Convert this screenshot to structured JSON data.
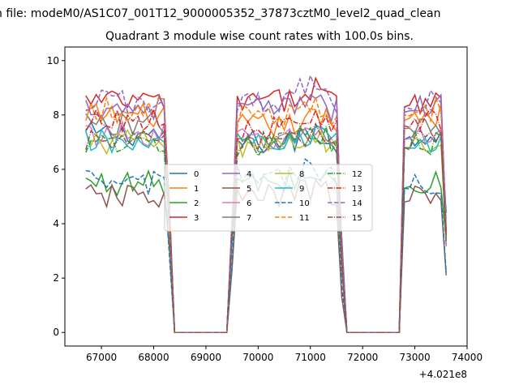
{
  "figure": {
    "suptitle": "n file: modeM0/AS1C07_001T12_9000005352_37873cztM0_level2_quad_clean",
    "title": "Quadrant 3 module wise count rates with 100.0s bins."
  },
  "chart_data": {
    "type": "line",
    "title": "Quadrant 3 module wise count rates with 100.0s bins.",
    "xlabel": "",
    "ylabel": "",
    "x_offset_text": "+4.021e8",
    "xlim": [
      66300,
      74000
    ],
    "ylim": [
      -0.5,
      10.5
    ],
    "xticks": [
      67000,
      68000,
      69000,
      70000,
      71000,
      72000,
      73000,
      74000
    ],
    "yticks": [
      0,
      2,
      4,
      6,
      8,
      10
    ],
    "legend_loc": "center",
    "legend_ncol": 4,
    "segments": [
      {
        "start": 66700,
        "n": 17
      },
      {
        "start": 68400,
        "n": 11,
        "gap": true
      },
      {
        "start": 69500,
        "n": 22
      },
      {
        "start": 71700,
        "n": 11,
        "gap": true
      },
      {
        "start": 72800,
        "n": 9
      }
    ],
    "series": [
      {
        "name": "0",
        "color": "#1f77b4",
        "dash": "solid",
        "level": 7.3,
        "seg3": 7.0,
        "edge": 4.8
      },
      {
        "name": "1",
        "color": "#ff7f0e",
        "dash": "solid",
        "level": 8.0,
        "seg3": 7.6,
        "edge": 4.0
      },
      {
        "name": "2",
        "color": "#2ca02c",
        "dash": "solid",
        "level": 5.5,
        "seg3": 5.5,
        "edge": 3.9
      },
      {
        "name": "3",
        "color": "#d62728",
        "dash": "solid",
        "level": 8.5,
        "seg3": 8.5,
        "edge": 4.5
      },
      {
        "name": "4",
        "color": "#9467bd",
        "dash": "solid",
        "level": 8.3,
        "seg3": 8.2,
        "edge": 4.2
      },
      {
        "name": "5",
        "color": "#8c564b",
        "dash": "solid",
        "level": 5.0,
        "seg3": 5.0,
        "edge": 2.9
      },
      {
        "name": "6",
        "color": "#e377c2",
        "dash": "solid",
        "level": 7.3,
        "seg3": 7.1,
        "edge": 3.8
      },
      {
        "name": "7",
        "color": "#7f7f7f",
        "dash": "solid",
        "level": 7.7,
        "seg3": 7.0,
        "edge": 4.1
      },
      {
        "name": "8",
        "color": "#bcbd22",
        "dash": "solid",
        "level": 7.0,
        "seg3": 6.8,
        "edge": 4.1
      },
      {
        "name": "9",
        "color": "#17becf",
        "dash": "solid",
        "level": 7.0,
        "seg3": 6.9,
        "edge": 4.0
      },
      {
        "name": "10",
        "color": "#1f77b4",
        "dash": "dashed",
        "level": 5.5,
        "seg3": 5.7,
        "edge": 3.0
      },
      {
        "name": "11",
        "color": "#ff7f0e",
        "dash": "dashed",
        "level": 8.2,
        "seg3": 8.0,
        "edge": 4.4
      },
      {
        "name": "12",
        "color": "#2ca02c",
        "dash": "dashdot",
        "level": 7.0,
        "seg3": 6.9,
        "edge": 4.0
      },
      {
        "name": "13",
        "color": "#d62728",
        "dash": "dashdot",
        "level": 7.8,
        "seg3": 7.5,
        "edge": 4.3
      },
      {
        "name": "14",
        "color": "#9467bd",
        "dash": "dashed",
        "level": 8.5,
        "seg3": 8.5,
        "edge": 4.6
      },
      {
        "name": "15",
        "color": "#8c564b",
        "dash": "dashdot",
        "level": 7.0,
        "seg3": 7.0,
        "edge": 4.0
      }
    ]
  }
}
